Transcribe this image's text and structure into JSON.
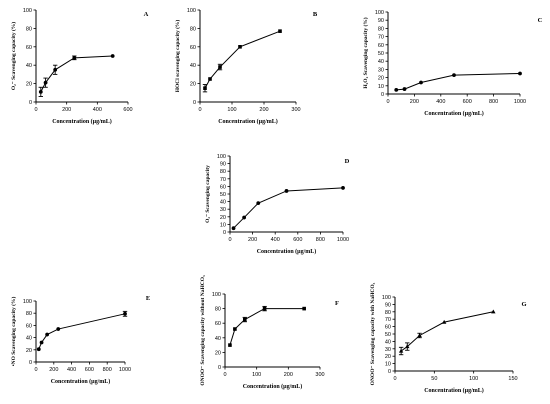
{
  "chart_data": [
    {
      "panel": "A",
      "type": "line",
      "xlabel": "Concentration (µg/mL)",
      "ylabel": "O₂⁻ Scavenging capacity (%)",
      "xlim": [
        0,
        600
      ],
      "ylim": [
        0,
        100
      ],
      "xticks": [
        0,
        200,
        400,
        600
      ],
      "yticks": [
        0,
        20,
        40,
        60,
        80,
        100
      ],
      "marker": "circle",
      "x": [
        31.25,
        62.5,
        125,
        250,
        500
      ],
      "y": [
        11,
        21,
        35,
        48,
        50
      ],
      "err": [
        5,
        5,
        5,
        2,
        0
      ]
    },
    {
      "panel": "B",
      "type": "line",
      "xlabel": "Concentration (µg/mL)",
      "ylabel": "HOCl scavenging capacity (%)",
      "xlim": [
        0,
        300
      ],
      "ylim": [
        0,
        100
      ],
      "xticks": [
        0,
        100,
        200,
        300
      ],
      "yticks": [
        0,
        20,
        40,
        60,
        80,
        100
      ],
      "marker": "square",
      "x": [
        15.6,
        31.25,
        62.5,
        125,
        250
      ],
      "y": [
        15,
        25,
        38,
        60,
        77
      ],
      "err": [
        4,
        0,
        3,
        0,
        0
      ]
    },
    {
      "panel": "C",
      "type": "line",
      "xlabel": "Concentration (µg/mL)",
      "ylabel": "H₂O₂ Scavenging capacity (%)",
      "xlim": [
        0,
        1000
      ],
      "ylim": [
        0,
        100
      ],
      "xticks": [
        0,
        200,
        400,
        600,
        800,
        1000
      ],
      "yticks": [
        0,
        10,
        20,
        30,
        40,
        50,
        60,
        70,
        80,
        90,
        100
      ],
      "marker": "circle",
      "x": [
        62.5,
        125,
        250,
        500,
        1000
      ],
      "y": [
        5,
        6,
        14,
        23,
        25
      ],
      "err": [
        0,
        0,
        0,
        0,
        0
      ]
    },
    {
      "panel": "D",
      "type": "line",
      "xlabel": "Concentration (µg/mL)",
      "ylabel": "O₂⁻ Scavenging capacity",
      "xlim": [
        0,
        1000
      ],
      "ylim": [
        0,
        100
      ],
      "xticks": [
        0,
        200,
        400,
        600,
        800,
        1000
      ],
      "yticks": [
        0,
        10,
        20,
        30,
        40,
        50,
        60,
        70,
        80,
        90,
        100
      ],
      "marker": "circle",
      "x": [
        31.25,
        125,
        250,
        500,
        1000
      ],
      "y": [
        5,
        19,
        38,
        54,
        58
      ],
      "err": [
        0,
        0,
        0,
        0,
        0
      ]
    },
    {
      "panel": "E",
      "type": "line",
      "xlabel": "Concentration (µg/mL)",
      "ylabel": "•NO Scavenging capacity (%)",
      "xlim": [
        0,
        1000
      ],
      "ylim": [
        0,
        100
      ],
      "xticks": [
        0,
        200,
        400,
        600,
        800,
        1000
      ],
      "yticks": [
        0,
        20,
        40,
        60,
        80,
        100
      ],
      "marker": "circle",
      "x": [
        31.25,
        62.5,
        125,
        250,
        1000
      ],
      "y": [
        21,
        32,
        45,
        54,
        79
      ],
      "err": [
        0,
        0,
        0,
        0,
        4
      ]
    },
    {
      "panel": "F",
      "type": "line",
      "xlabel": "Concentration (µg/mL)",
      "ylabel": "ONOO⁻ Scavenging capacity without NaHCO₃",
      "xlim": [
        0,
        300
      ],
      "ylim": [
        0,
        100
      ],
      "xticks": [
        0,
        100,
        200,
        300
      ],
      "yticks": [
        0,
        20,
        40,
        60,
        80,
        100
      ],
      "marker": "square",
      "x": [
        15.6,
        31.25,
        62.5,
        125,
        250
      ],
      "y": [
        30,
        52,
        65,
        80,
        80
      ],
      "err": [
        0,
        0,
        3,
        3,
        0
      ]
    },
    {
      "panel": "G",
      "type": "line",
      "xlabel": "Concentration (µg/mL)",
      "ylabel": "ONOO⁻ Scavenging capacity with NaHCO₃",
      "xlim": [
        0,
        150
      ],
      "ylim": [
        0,
        100
      ],
      "xticks": [
        0,
        50,
        100,
        150
      ],
      "yticks": [
        0,
        10,
        20,
        30,
        40,
        50,
        60,
        70,
        80,
        90,
        100
      ],
      "marker": "triangle",
      "x": [
        7.8,
        15.6,
        31.25,
        62.5,
        125
      ],
      "y": [
        27,
        33,
        48,
        66,
        80
      ],
      "err": [
        5,
        5,
        3,
        0,
        0
      ]
    }
  ]
}
